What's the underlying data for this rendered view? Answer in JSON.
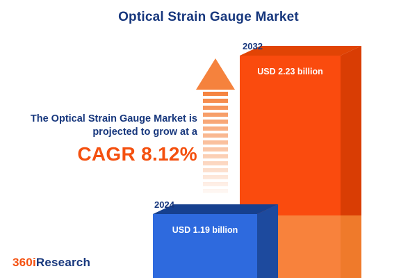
{
  "title": "Optical Strain Gauge Market",
  "annotation": {
    "line1": "The Optical Strain Gauge Market is",
    "line2": "projected to grow at a",
    "cagr": "CAGR 8.12%"
  },
  "bars": {
    "b2024": {
      "year": "2024",
      "value_label": "USD 1.19 billion"
    },
    "b2032": {
      "year": "2032",
      "value_label": "USD 2.23 billion"
    }
  },
  "logo": {
    "prefix": "360i",
    "suffix": "Research"
  },
  "colors": {
    "navy_text": "#17377d",
    "cagr_orange": "#f4500f",
    "bar_2032_front": "#fa4b0e",
    "bar_2032_side": "#d93d04",
    "bar_2032_front_lower": "#f8823c",
    "bar_2024_front": "#2e6ade",
    "bar_2024_side": "#1d4a9e",
    "arrow_orange": "#f5823d",
    "value_text": "#ffffff",
    "background": "#ffffff"
  },
  "chart_data": {
    "type": "bar",
    "categories": [
      "2024",
      "2032"
    ],
    "values": [
      1.19,
      2.23
    ],
    "unit": "USD billion",
    "value_labels": [
      "USD 1.19 billion",
      "USD 2.23 billion"
    ],
    "bar_colors": [
      "#2e6ade",
      "#fa4b0e"
    ],
    "title": "Optical Strain Gauge Market",
    "xlabel": "",
    "ylabel": "",
    "ylim": [
      0,
      2.5
    ],
    "grid": false,
    "legend": false,
    "style": "3d-bars",
    "cagr_percent": 8.12,
    "annotations": [
      "The Optical Strain Gauge Market is projected to grow at a CAGR 8.12%"
    ]
  }
}
